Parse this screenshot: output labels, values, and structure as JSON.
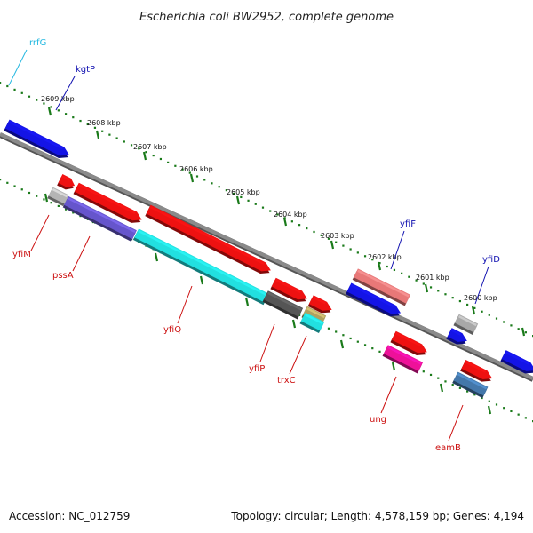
{
  "title": "Escherichia coli BW2952, complete genome",
  "footer": {
    "accession": "Accession: NC_012759",
    "summary": "Topology: circular; Length: 4,578,159 bp; Genes: 4,194"
  },
  "colors": {
    "backbone": "#8a8a8a",
    "ruler": "#1a7a1a",
    "plus_label": "#1010b0",
    "minus_label": "#cc1111",
    "rna_label": "#22b8e0"
  },
  "kbp_labels": [
    "2609 kbp",
    "2608 kbp",
    "2607 kbp",
    "2606 kbp",
    "2605 kbp",
    "2604 kbp",
    "2603 kbp",
    "2602 kbp",
    "2601 kbp",
    "2600 kbp"
  ],
  "genes_upper": [
    {
      "color": "#1414e6"
    },
    {
      "color": "#e87878"
    },
    {
      "color": "#1414e6"
    },
    {
      "color": "#a8a8a8"
    },
    {
      "color": "#1414e6"
    },
    {
      "color": "#1414e6"
    }
  ],
  "genes_lower": [
    {
      "color": "#ee1111"
    },
    {
      "color": "#b4b4b4"
    },
    {
      "color": "#ee1111"
    },
    {
      "color": "#6655cc"
    },
    {
      "color": "#ee1111"
    },
    {
      "color": "#22e0e0"
    },
    {
      "color": "#ee1111"
    },
    {
      "color": "#555555"
    },
    {
      "color": "#ee1111"
    },
    {
      "color": "#b0a060"
    },
    {
      "color": "#22e0e0"
    },
    {
      "color": "#ee1111"
    },
    {
      "color": "#ee1199"
    },
    {
      "color": "#ee1111"
    },
    {
      "color": "#4477aa"
    }
  ],
  "labels": [
    {
      "text": "rrfG",
      "color": "#22b8e0"
    },
    {
      "text": "kgtP",
      "color": "#1010b0"
    },
    {
      "text": "yfiF",
      "color": "#1010b0"
    },
    {
      "text": "yfiD",
      "color": "#1010b0"
    },
    {
      "text": "yfiM",
      "color": "#cc1111"
    },
    {
      "text": "pssA",
      "color": "#cc1111"
    },
    {
      "text": "yfiQ",
      "color": "#cc1111"
    },
    {
      "text": "yfiP",
      "color": "#cc1111"
    },
    {
      "text": "trxC",
      "color": "#cc1111"
    },
    {
      "text": "ung",
      "color": "#cc1111"
    },
    {
      "text": "eamB",
      "color": "#cc1111"
    }
  ]
}
